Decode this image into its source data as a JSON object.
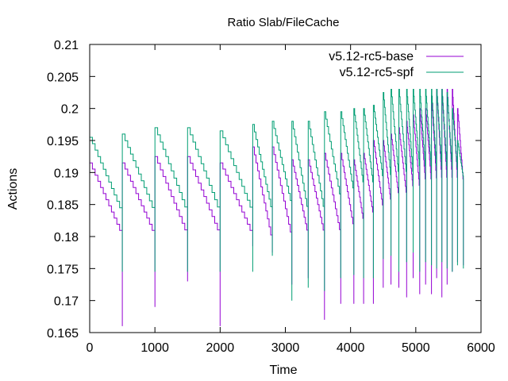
{
  "chart_data": {
    "type": "line",
    "title": "Ratio Slab/FileCache",
    "xlabel": "Time",
    "ylabel": "Actions",
    "xlim": [
      0,
      6000
    ],
    "ylim": [
      0.165,
      0.21
    ],
    "xticks": [
      0,
      1000,
      2000,
      3000,
      4000,
      5000,
      6000
    ],
    "yticks": [
      0.165,
      0.17,
      0.175,
      0.18,
      0.185,
      0.19,
      0.195,
      0.2,
      0.205,
      0.21
    ],
    "xtick_labels": [
      "0",
      "1000",
      "2000",
      "3000",
      "4000",
      "5000",
      "6000"
    ],
    "ytick_labels": [
      "0.165",
      "0.17",
      "0.175",
      "0.18",
      "0.185",
      "0.19",
      "0.195",
      "0.2",
      "0.205",
      "0.21"
    ],
    "grid": false,
    "legend_position": "top-right",
    "series": [
      {
        "name": "v5.12-rc5-base",
        "color": "#9400d3",
        "cycles": [
          {
            "start": 0,
            "end": 500,
            "top": 0.1915,
            "bottom": 0.18,
            "spike": 0.166
          },
          {
            "start": 500,
            "end": 1000,
            "top": 0.1915,
            "bottom": 0.18,
            "spike": 0.169
          },
          {
            "start": 1000,
            "end": 1500,
            "top": 0.1925,
            "bottom": 0.18,
            "spike": 0.173
          },
          {
            "start": 1500,
            "end": 2000,
            "top": 0.1925,
            "bottom": 0.18,
            "spike": 0.166
          },
          {
            "start": 2000,
            "end": 2500,
            "top": 0.1915,
            "bottom": 0.18,
            "spike": 0.1785
          },
          {
            "start": 2500,
            "end": 2800,
            "top": 0.194,
            "bottom": 0.179,
            "spike": 0.1775
          },
          {
            "start": 2800,
            "end": 3100,
            "top": 0.194,
            "bottom": 0.1795,
            "spike": 0.1725
          },
          {
            "start": 3100,
            "end": 3350,
            "top": 0.192,
            "bottom": 0.18,
            "spike": 0.1735
          },
          {
            "start": 3350,
            "end": 3600,
            "top": 0.192,
            "bottom": 0.18,
            "spike": 0.167
          },
          {
            "start": 3600,
            "end": 3850,
            "top": 0.193,
            "bottom": 0.18,
            "spike": 0.1695
          },
          {
            "start": 3850,
            "end": 4050,
            "top": 0.193,
            "bottom": 0.181,
            "spike": 0.1695
          },
          {
            "start": 4050,
            "end": 4200,
            "top": 0.192,
            "bottom": 0.182,
            "spike": 0.1695
          },
          {
            "start": 4200,
            "end": 4350,
            "top": 0.193,
            "bottom": 0.183,
            "spike": 0.1695
          },
          {
            "start": 4350,
            "end": 4500,
            "top": 0.195,
            "bottom": 0.184,
            "spike": 0.172
          },
          {
            "start": 4500,
            "end": 4620,
            "top": 0.195,
            "bottom": 0.185,
            "spike": 0.1725
          },
          {
            "start": 4620,
            "end": 4740,
            "top": 0.196,
            "bottom": 0.186,
            "spike": 0.172
          },
          {
            "start": 4740,
            "end": 4860,
            "top": 0.197,
            "bottom": 0.186,
            "spike": 0.1705
          },
          {
            "start": 4860,
            "end": 4960,
            "top": 0.198,
            "bottom": 0.187,
            "spike": 0.1735
          },
          {
            "start": 4960,
            "end": 5060,
            "top": 0.199,
            "bottom": 0.187,
            "spike": 0.171
          },
          {
            "start": 5060,
            "end": 5150,
            "top": 0.2,
            "bottom": 0.188,
            "spike": 0.1725
          },
          {
            "start": 5150,
            "end": 5240,
            "top": 0.2,
            "bottom": 0.188,
            "spike": 0.171
          },
          {
            "start": 5240,
            "end": 5320,
            "top": 0.202,
            "bottom": 0.188,
            "spike": 0.1735
          },
          {
            "start": 5320,
            "end": 5400,
            "top": 0.203,
            "bottom": 0.188,
            "spike": 0.1705
          },
          {
            "start": 5400,
            "end": 5480,
            "top": 0.203,
            "bottom": 0.188,
            "spike": 0.1725
          },
          {
            "start": 5480,
            "end": 5560,
            "top": 0.203,
            "bottom": 0.188,
            "spike": 0.1745
          },
          {
            "start": 5560,
            "end": 5640,
            "top": 0.203,
            "bottom": 0.188,
            "spike": 0.176
          },
          {
            "start": 5640,
            "end": 5730,
            "top": 0.2,
            "bottom": 0.188,
            "spike": 0.1755
          }
        ]
      },
      {
        "name": "v5.12-rc5-spf",
        "color": "#009e73",
        "cycles": [
          {
            "start": 0,
            "end": 500,
            "top": 0.1955,
            "bottom": 0.1835,
            "spike": 0.1745
          },
          {
            "start": 500,
            "end": 1000,
            "top": 0.196,
            "bottom": 0.1835,
            "spike": 0.1745
          },
          {
            "start": 1000,
            "end": 1500,
            "top": 0.197,
            "bottom": 0.1835,
            "spike": 0.1745
          },
          {
            "start": 1500,
            "end": 2000,
            "top": 0.197,
            "bottom": 0.1835,
            "spike": 0.1745
          },
          {
            "start": 2000,
            "end": 2500,
            "top": 0.1965,
            "bottom": 0.1835,
            "spike": 0.1745
          },
          {
            "start": 2500,
            "end": 2800,
            "top": 0.1975,
            "bottom": 0.1835,
            "spike": 0.177
          },
          {
            "start": 2800,
            "end": 3100,
            "top": 0.198,
            "bottom": 0.1845,
            "spike": 0.17
          },
          {
            "start": 3100,
            "end": 3350,
            "top": 0.198,
            "bottom": 0.1835,
            "spike": 0.172
          },
          {
            "start": 3350,
            "end": 3600,
            "top": 0.198,
            "bottom": 0.1835,
            "spike": 0.1715
          },
          {
            "start": 3600,
            "end": 3850,
            "top": 0.1995,
            "bottom": 0.1855,
            "spike": 0.1735
          },
          {
            "start": 3850,
            "end": 4050,
            "top": 0.1995,
            "bottom": 0.1865,
            "spike": 0.174
          },
          {
            "start": 4050,
            "end": 4200,
            "top": 0.2,
            "bottom": 0.1875,
            "spike": 0.1735
          },
          {
            "start": 4200,
            "end": 4350,
            "top": 0.2,
            "bottom": 0.1875,
            "spike": 0.1735
          },
          {
            "start": 4350,
            "end": 4500,
            "top": 0.2005,
            "bottom": 0.1885,
            "spike": 0.1765
          },
          {
            "start": 4500,
            "end": 4620,
            "top": 0.2025,
            "bottom": 0.1885,
            "spike": 0.177
          },
          {
            "start": 4620,
            "end": 4740,
            "top": 0.203,
            "bottom": 0.189,
            "spike": 0.1745
          },
          {
            "start": 4740,
            "end": 4860,
            "top": 0.203,
            "bottom": 0.189,
            "spike": 0.176
          },
          {
            "start": 4860,
            "end": 4960,
            "top": 0.203,
            "bottom": 0.189,
            "spike": 0.1775
          },
          {
            "start": 4960,
            "end": 5060,
            "top": 0.203,
            "bottom": 0.19,
            "spike": 0.1745
          },
          {
            "start": 5060,
            "end": 5150,
            "top": 0.203,
            "bottom": 0.19,
            "spike": 0.176
          },
          {
            "start": 5150,
            "end": 5240,
            "top": 0.203,
            "bottom": 0.19,
            "spike": 0.1755
          },
          {
            "start": 5240,
            "end": 5320,
            "top": 0.203,
            "bottom": 0.19,
            "spike": 0.175
          },
          {
            "start": 5320,
            "end": 5400,
            "top": 0.203,
            "bottom": 0.19,
            "spike": 0.176
          },
          {
            "start": 5400,
            "end": 5480,
            "top": 0.203,
            "bottom": 0.19,
            "spike": 0.175
          },
          {
            "start": 5480,
            "end": 5560,
            "top": 0.2025,
            "bottom": 0.19,
            "spike": 0.1745
          },
          {
            "start": 5560,
            "end": 5640,
            "top": 0.2,
            "bottom": 0.19,
            "spike": 0.1755
          },
          {
            "start": 5640,
            "end": 5730,
            "top": 0.195,
            "bottom": 0.189,
            "spike": 0.175
          }
        ]
      }
    ]
  }
}
